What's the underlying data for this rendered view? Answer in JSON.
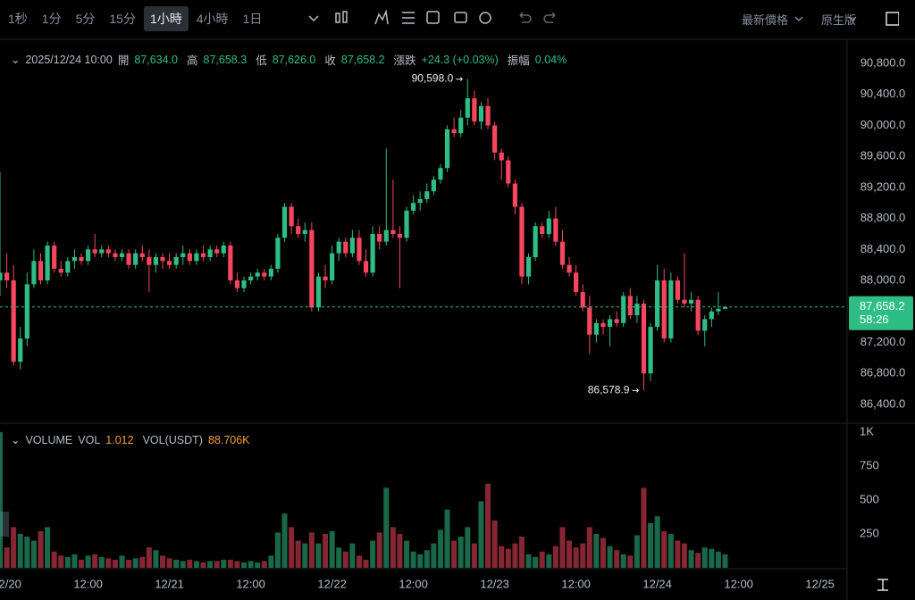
{
  "toolbar": {
    "intervals": [
      "1秒",
      "1分",
      "5分",
      "15分",
      "1小時",
      "4小時",
      "1日"
    ],
    "active_interval": 4,
    "price_type": "最新價格",
    "version": "原生版"
  },
  "ohlc_header": {
    "date": "2025/12/24 10:00",
    "items": [
      {
        "label": "開",
        "value": "87,634.0"
      },
      {
        "label": "高",
        "value": "87,658.3"
      },
      {
        "label": "低",
        "value": "87,626.0"
      },
      {
        "label": "收",
        "value": "87,658.2"
      },
      {
        "label": "漲跌",
        "value": "+24.3 (+0.03%)"
      },
      {
        "label": "振幅",
        "value": "0.04%"
      }
    ]
  },
  "volume_header": {
    "title": "VOLUME",
    "items": [
      {
        "label": "VOL",
        "value": "1.012"
      },
      {
        "label": "VOL(USDT)",
        "value": "88.706K"
      }
    ]
  },
  "chart_data": [
    {
      "type": "candlestick",
      "up_color": "#2ebd85",
      "down_color": "#f6465d",
      "xlim": [
        0,
        125
      ],
      "xticks": [
        {
          "value": 1,
          "label": "12/20"
        },
        {
          "value": 13,
          "label": "12:00"
        },
        {
          "value": 25,
          "label": "12/21"
        },
        {
          "value": 37,
          "label": "12:00"
        },
        {
          "value": 49,
          "label": "12/22"
        },
        {
          "value": 61,
          "label": "12:00"
        },
        {
          "value": 73,
          "label": "12/23"
        },
        {
          "value": 85,
          "label": "12:00"
        },
        {
          "value": 97,
          "label": "12/24"
        },
        {
          "value": 109,
          "label": "12:00"
        },
        {
          "value": 121,
          "label": "12/25"
        }
      ],
      "ylim": [
        86180,
        91100
      ],
      "yticks": [
        {
          "value": 86400,
          "label": "86,400.0"
        },
        {
          "value": 86800,
          "label": "86,800.0"
        },
        {
          "value": 87200,
          "label": "87,200.0"
        },
        {
          "value": 88000,
          "label": "88,000.0"
        },
        {
          "value": 88400,
          "label": "88,400.0"
        },
        {
          "value": 88800,
          "label": "88,800.0"
        },
        {
          "value": 89200,
          "label": "89,200.0"
        },
        {
          "value": 89600,
          "label": "89,600.0"
        },
        {
          "value": 90000,
          "label": "90,000.0"
        },
        {
          "value": 90400,
          "label": "90,400.0"
        },
        {
          "value": 90800,
          "label": "90,800.0"
        }
      ],
      "last_price": {
        "value": 87658.2,
        "label": "87,658.2",
        "countdown": "58:26"
      },
      "max_label": {
        "value": 90598,
        "label": "90,598.0"
      },
      "min_label": {
        "value": 86578.9,
        "label": "86,578.9"
      },
      "open": [
        88000,
        88100,
        88000,
        86950,
        87250,
        87950,
        88250,
        88000,
        88450,
        88150,
        88100,
        88250,
        88300,
        88250,
        88400,
        88350,
        88400,
        88350,
        88300,
        88350,
        88200,
        88350,
        88300,
        88200,
        88300,
        88250,
        88200,
        88300,
        88350,
        88250,
        88350,
        88300,
        88400,
        88350,
        88450,
        88000,
        87900,
        88000,
        88050,
        88100,
        88050,
        88150,
        88550,
        88950,
        88700,
        88600,
        88650,
        87650,
        88050,
        88000,
        88350,
        88500,
        88350,
        88550,
        88250,
        88100,
        88600,
        88500,
        88650,
        88600,
        88550,
        88900,
        89000,
        89050,
        89150,
        89300,
        89450,
        89950,
        89900,
        90100,
        90350,
        90050,
        90250,
        90000,
        89650,
        89550,
        89250,
        88950,
        88050,
        88300,
        88700,
        88600,
        88800,
        88500,
        88200,
        88100,
        87850,
        87650,
        87300,
        87450,
        87400,
        87500,
        87450,
        87800,
        87550,
        87700,
        86800,
        87400,
        88000,
        87250,
        88000,
        87750,
        87700,
        87750,
        87350,
        87500,
        87600,
        87634
      ],
      "high": [
        89400,
        88350,
        88200,
        87400,
        88100,
        88400,
        88350,
        88500,
        88500,
        88250,
        88300,
        88400,
        88350,
        88450,
        88600,
        88450,
        88450,
        88400,
        88400,
        88400,
        88400,
        88450,
        88400,
        88350,
        88350,
        88350,
        88350,
        88450,
        88400,
        88400,
        88450,
        88450,
        88450,
        88500,
        88500,
        88100,
        88050,
        88100,
        88150,
        88150,
        88200,
        88600,
        89000,
        89000,
        88800,
        88750,
        88750,
        88100,
        88200,
        88450,
        88550,
        88550,
        88650,
        88650,
        88400,
        88700,
        88700,
        89700,
        89300,
        88700,
        88950,
        89100,
        89150,
        89250,
        89350,
        89500,
        90000,
        90100,
        90200,
        90598,
        90450,
        90300,
        90350,
        90050,
        89700,
        89600,
        89300,
        89000,
        88350,
        88750,
        88750,
        88900,
        88950,
        88650,
        88300,
        88200,
        87950,
        87800,
        87500,
        87500,
        87550,
        87600,
        87850,
        87900,
        87800,
        87750,
        87450,
        88200,
        88150,
        88100,
        88050,
        88350,
        87850,
        87800,
        87550,
        87650,
        87850,
        87658.3
      ],
      "low": [
        87800,
        87900,
        86900,
        86850,
        87150,
        87900,
        87950,
        87950,
        88100,
        88050,
        88050,
        88150,
        88200,
        88200,
        88300,
        88300,
        88300,
        88250,
        88250,
        88150,
        88150,
        88250,
        87850,
        88100,
        88150,
        88150,
        88150,
        88200,
        88200,
        88200,
        88250,
        88250,
        88300,
        88300,
        87950,
        87850,
        87850,
        87950,
        88000,
        88000,
        88000,
        88100,
        88500,
        88600,
        88550,
        88500,
        87600,
        87600,
        87900,
        87950,
        88250,
        88300,
        88300,
        88200,
        88050,
        88050,
        88400,
        88450,
        88550,
        87900,
        88500,
        88850,
        88900,
        89000,
        89100,
        89250,
        89400,
        89850,
        89850,
        90000,
        90000,
        89950,
        89950,
        89550,
        89300,
        89200,
        88850,
        87950,
        87950,
        88250,
        88550,
        88550,
        88450,
        88150,
        88050,
        87800,
        87600,
        87050,
        87200,
        87300,
        87150,
        87400,
        87400,
        87500,
        87450,
        86578.9,
        86700,
        87350,
        87200,
        87200,
        87700,
        87650,
        87600,
        87300,
        87150,
        87400,
        87550,
        87626
      ],
      "close": [
        88100,
        88000,
        86950,
        87250,
        87950,
        88250,
        88000,
        88450,
        88150,
        88100,
        88250,
        88300,
        88250,
        88400,
        88350,
        88400,
        88350,
        88300,
        88350,
        88200,
        88350,
        88300,
        88200,
        88300,
        88250,
        88200,
        88300,
        88350,
        88250,
        88350,
        88300,
        88400,
        88350,
        88450,
        88000,
        87900,
        88000,
        88050,
        88100,
        88050,
        88150,
        88550,
        88950,
        88700,
        88600,
        88650,
        87650,
        88050,
        88000,
        88350,
        88500,
        88350,
        88550,
        88250,
        88100,
        88600,
        88500,
        88650,
        88600,
        88550,
        88900,
        89000,
        89050,
        89150,
        89300,
        89450,
        89950,
        89900,
        90100,
        90350,
        90050,
        90250,
        90000,
        89650,
        89550,
        89250,
        88950,
        88050,
        88300,
        88700,
        88600,
        88800,
        88500,
        88200,
        88100,
        87850,
        87650,
        87300,
        87450,
        87400,
        87500,
        87450,
        87800,
        87550,
        87700,
        86800,
        87400,
        88000,
        87250,
        88000,
        87750,
        87700,
        87750,
        87350,
        87500,
        87600,
        87634,
        87658.2
      ]
    },
    {
      "type": "bar",
      "ylim": [
        0,
        1039
      ],
      "yticks": [
        250,
        500,
        750,
        {
          "value": 1000,
          "label": "1K"
        }
      ],
      "values": [
        1000,
        150,
        300,
        250,
        230,
        200,
        270,
        300,
        120,
        90,
        80,
        100,
        60,
        90,
        100,
        80,
        70,
        60,
        90,
        60,
        70,
        80,
        150,
        130,
        90,
        70,
        60,
        50,
        60,
        50,
        40,
        50,
        50,
        60,
        60,
        50,
        40,
        50,
        40,
        50,
        90,
        260,
        400,
        300,
        200,
        180,
        260,
        180,
        250,
        270,
        150,
        120,
        180,
        90,
        60,
        200,
        260,
        590,
        300,
        250,
        200,
        120,
        100,
        130,
        180,
        280,
        430,
        200,
        230,
        300,
        180,
        490,
        620,
        350,
        160,
        140,
        180,
        230,
        100,
        80,
        120,
        100,
        160,
        300,
        200,
        150,
        180,
        300,
        250,
        220,
        160,
        130,
        100,
        90,
        240,
        590,
        330,
        380,
        270,
        250,
        200,
        180,
        130,
        110,
        150,
        140,
        120,
        100
      ]
    }
  ]
}
